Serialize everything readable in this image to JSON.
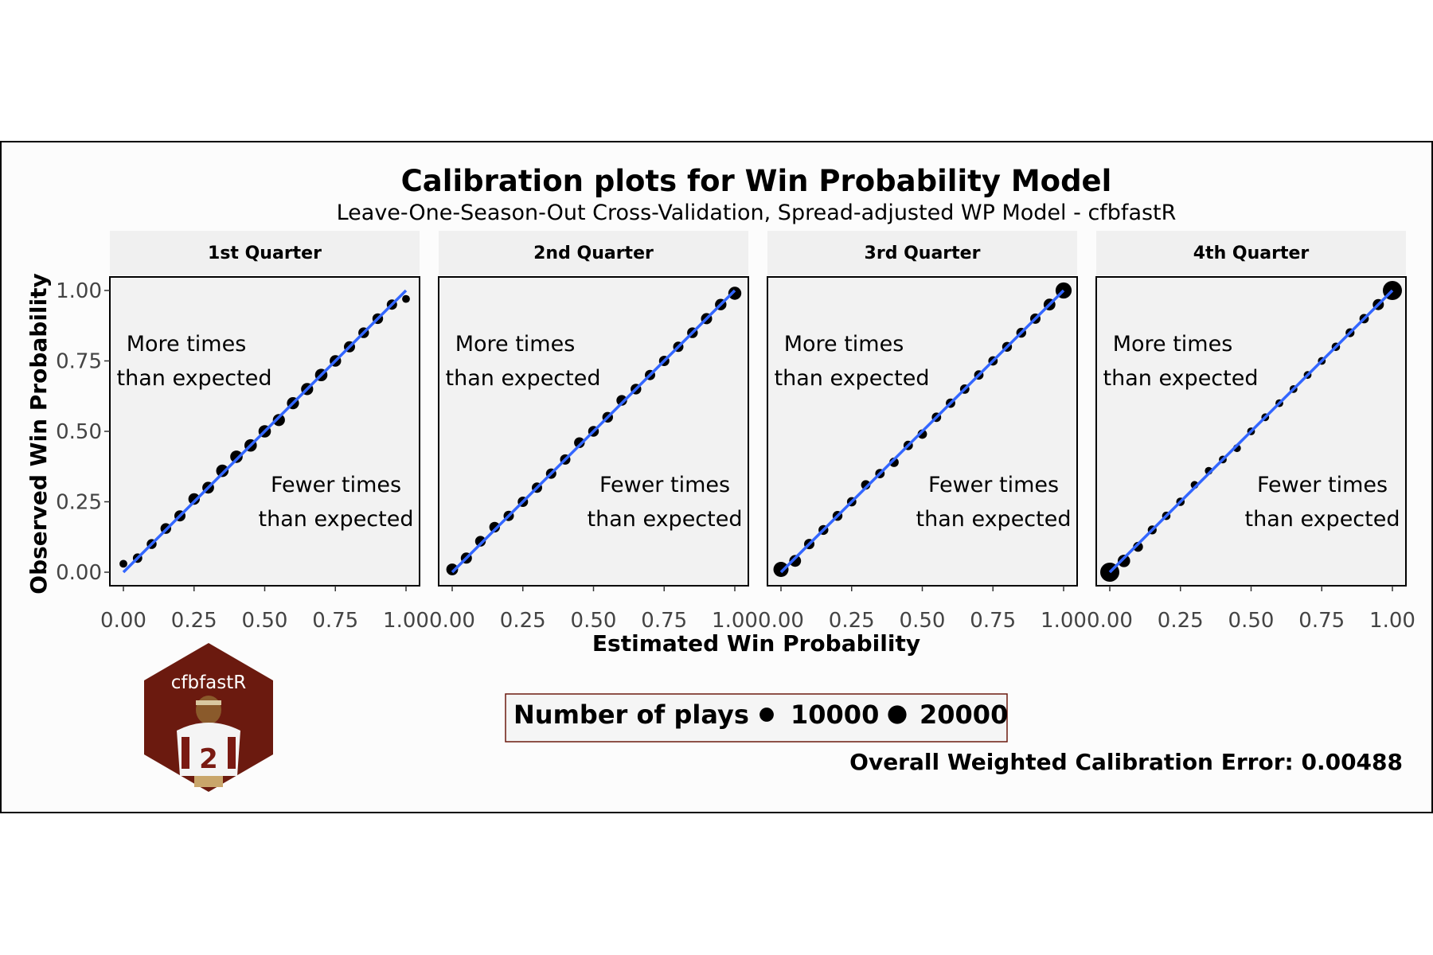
{
  "chart_data": {
    "type": "scatter",
    "title": "Calibration plots for Win Probability Model",
    "subtitle": "Leave-One-Season-Out Cross-Validation, Spread-adjusted WP Model - cfbfastR",
    "xlabel": "Estimated Win Probability",
    "ylabel": "Observed Win Probability",
    "xlim": [
      0,
      1
    ],
    "ylim": [
      0,
      1
    ],
    "x_ticks": [
      "0.00",
      "0.25",
      "0.50",
      "0.75",
      "1.00"
    ],
    "y_ticks": [
      "0.00",
      "0.25",
      "0.50",
      "0.75",
      "1.00"
    ],
    "grid": false,
    "fit_line_color": "#3366ff",
    "point_color": "#000000",
    "panel_background": "#f2f2f2",
    "annotation_upper": [
      "More times",
      "than expected"
    ],
    "annotation_lower": [
      "Fewer times",
      "than expected"
    ],
    "panels": [
      {
        "label": "1st Quarter",
        "points": [
          {
            "x": 0.0,
            "y": 0.03,
            "n": 1500
          },
          {
            "x": 0.05,
            "y": 0.05,
            "n": 3000
          },
          {
            "x": 0.1,
            "y": 0.1,
            "n": 3500
          },
          {
            "x": 0.15,
            "y": 0.155,
            "n": 4500
          },
          {
            "x": 0.2,
            "y": 0.2,
            "n": 5000
          },
          {
            "x": 0.25,
            "y": 0.26,
            "n": 5500
          },
          {
            "x": 0.3,
            "y": 0.3,
            "n": 6000
          },
          {
            "x": 0.35,
            "y": 0.36,
            "n": 7000
          },
          {
            "x": 0.4,
            "y": 0.41,
            "n": 7000
          },
          {
            "x": 0.45,
            "y": 0.45,
            "n": 7000
          },
          {
            "x": 0.5,
            "y": 0.5,
            "n": 7000
          },
          {
            "x": 0.55,
            "y": 0.54,
            "n": 6500
          },
          {
            "x": 0.6,
            "y": 0.6,
            "n": 6500
          },
          {
            "x": 0.65,
            "y": 0.65,
            "n": 6500
          },
          {
            "x": 0.7,
            "y": 0.7,
            "n": 7000
          },
          {
            "x": 0.75,
            "y": 0.75,
            "n": 5500
          },
          {
            "x": 0.8,
            "y": 0.8,
            "n": 5000
          },
          {
            "x": 0.85,
            "y": 0.85,
            "n": 4500
          },
          {
            "x": 0.9,
            "y": 0.9,
            "n": 4500
          },
          {
            "x": 0.95,
            "y": 0.95,
            "n": 4000
          },
          {
            "x": 1.0,
            "y": 0.97,
            "n": 1500
          }
        ]
      },
      {
        "label": "2nd Quarter",
        "points": [
          {
            "x": 0.0,
            "y": 0.01,
            "n": 6000
          },
          {
            "x": 0.05,
            "y": 0.05,
            "n": 5000
          },
          {
            "x": 0.1,
            "y": 0.11,
            "n": 4500
          },
          {
            "x": 0.15,
            "y": 0.16,
            "n": 4500
          },
          {
            "x": 0.2,
            "y": 0.2,
            "n": 4000
          },
          {
            "x": 0.25,
            "y": 0.25,
            "n": 4000
          },
          {
            "x": 0.3,
            "y": 0.3,
            "n": 4000
          },
          {
            "x": 0.35,
            "y": 0.35,
            "n": 4000
          },
          {
            "x": 0.4,
            "y": 0.4,
            "n": 4000
          },
          {
            "x": 0.45,
            "y": 0.46,
            "n": 4500
          },
          {
            "x": 0.5,
            "y": 0.5,
            "n": 4500
          },
          {
            "x": 0.55,
            "y": 0.55,
            "n": 4500
          },
          {
            "x": 0.6,
            "y": 0.61,
            "n": 4500
          },
          {
            "x": 0.65,
            "y": 0.65,
            "n": 4500
          },
          {
            "x": 0.7,
            "y": 0.7,
            "n": 4000
          },
          {
            "x": 0.75,
            "y": 0.75,
            "n": 4000
          },
          {
            "x": 0.8,
            "y": 0.8,
            "n": 4000
          },
          {
            "x": 0.85,
            "y": 0.85,
            "n": 4500
          },
          {
            "x": 0.9,
            "y": 0.9,
            "n": 5000
          },
          {
            "x": 0.95,
            "y": 0.95,
            "n": 5500
          },
          {
            "x": 1.0,
            "y": 0.99,
            "n": 8000
          }
        ]
      },
      {
        "label": "3rd Quarter",
        "points": [
          {
            "x": 0.0,
            "y": 0.01,
            "n": 12000
          },
          {
            "x": 0.05,
            "y": 0.04,
            "n": 6000
          },
          {
            "x": 0.1,
            "y": 0.1,
            "n": 4000
          },
          {
            "x": 0.15,
            "y": 0.15,
            "n": 3500
          },
          {
            "x": 0.2,
            "y": 0.2,
            "n": 3500
          },
          {
            "x": 0.25,
            "y": 0.25,
            "n": 3000
          },
          {
            "x": 0.3,
            "y": 0.31,
            "n": 3000
          },
          {
            "x": 0.35,
            "y": 0.35,
            "n": 3000
          },
          {
            "x": 0.4,
            "y": 0.39,
            "n": 3000
          },
          {
            "x": 0.45,
            "y": 0.45,
            "n": 3000
          },
          {
            "x": 0.5,
            "y": 0.49,
            "n": 3000
          },
          {
            "x": 0.55,
            "y": 0.55,
            "n": 3000
          },
          {
            "x": 0.6,
            "y": 0.6,
            "n": 3000
          },
          {
            "x": 0.65,
            "y": 0.65,
            "n": 3000
          },
          {
            "x": 0.7,
            "y": 0.7,
            "n": 3000
          },
          {
            "x": 0.75,
            "y": 0.75,
            "n": 3000
          },
          {
            "x": 0.8,
            "y": 0.8,
            "n": 3500
          },
          {
            "x": 0.85,
            "y": 0.85,
            "n": 3500
          },
          {
            "x": 0.9,
            "y": 0.9,
            "n": 4000
          },
          {
            "x": 0.95,
            "y": 0.95,
            "n": 6000
          },
          {
            "x": 1.0,
            "y": 1.0,
            "n": 14000
          }
        ]
      },
      {
        "label": "4th Quarter",
        "points": [
          {
            "x": 0.0,
            "y": 0.0,
            "n": 22000
          },
          {
            "x": 0.05,
            "y": 0.04,
            "n": 7000
          },
          {
            "x": 0.1,
            "y": 0.09,
            "n": 3500
          },
          {
            "x": 0.15,
            "y": 0.15,
            "n": 2500
          },
          {
            "x": 0.2,
            "y": 0.2,
            "n": 2000
          },
          {
            "x": 0.25,
            "y": 0.25,
            "n": 2000
          },
          {
            "x": 0.3,
            "y": 0.31,
            "n": 1500
          },
          {
            "x": 0.35,
            "y": 0.36,
            "n": 1500
          },
          {
            "x": 0.4,
            "y": 0.4,
            "n": 1500
          },
          {
            "x": 0.45,
            "y": 0.44,
            "n": 1500
          },
          {
            "x": 0.5,
            "y": 0.5,
            "n": 1500
          },
          {
            "x": 0.55,
            "y": 0.55,
            "n": 1500
          },
          {
            "x": 0.6,
            "y": 0.6,
            "n": 1500
          },
          {
            "x": 0.65,
            "y": 0.65,
            "n": 1500
          },
          {
            "x": 0.7,
            "y": 0.7,
            "n": 1500
          },
          {
            "x": 0.75,
            "y": 0.75,
            "n": 1500
          },
          {
            "x": 0.8,
            "y": 0.8,
            "n": 2000
          },
          {
            "x": 0.85,
            "y": 0.85,
            "n": 2500
          },
          {
            "x": 0.9,
            "y": 0.9,
            "n": 3000
          },
          {
            "x": 0.95,
            "y": 0.95,
            "n": 5000
          },
          {
            "x": 1.0,
            "y": 1.0,
            "n": 22000
          }
        ]
      }
    ],
    "legend": {
      "title": "Number of plays",
      "entries": [
        {
          "label": "10000",
          "n": 10000
        },
        {
          "label": "20000",
          "n": 20000
        }
      ],
      "position": "bottom"
    },
    "caption": "Overall Weighted Calibration Error: 0.00488"
  },
  "logo": {
    "text": "cfbfastR",
    "background": "#6b1a0f",
    "jersey_number": "2"
  }
}
